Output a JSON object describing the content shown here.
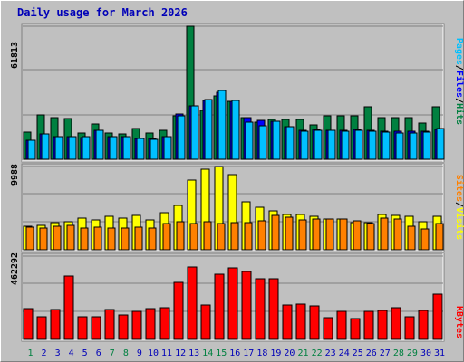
{
  "title": "Daily usage for March 2026",
  "colors": {
    "hits": "#008040",
    "files": "#0000ff",
    "pages": "#00c0ff",
    "visits": "#ffff00",
    "sites": "#ff8000",
    "kbytes": "#ff0000",
    "title": "#0000b8",
    "weekend_day": "#008040",
    "weekday_day": "#0000b8"
  },
  "chart_data": [
    {
      "type": "bar",
      "categories": [
        "1",
        "2",
        "3",
        "4",
        "5",
        "6",
        "7",
        "8",
        "9",
        "10",
        "11",
        "12",
        "13",
        "14",
        "15",
        "16",
        "17",
        "18",
        "19",
        "20",
        "21",
        "22",
        "23",
        "24",
        "25",
        "26",
        "27",
        "28",
        "29",
        "30",
        "31"
      ],
      "weekend_days": [
        "1",
        "7",
        "8",
        "14",
        "15",
        "21",
        "22",
        "28",
        "29"
      ],
      "ymax_label": "61813",
      "ylim": [
        0,
        61813
      ],
      "legend": {
        "pages": "Pages",
        "files": "Files",
        "hits": "Hits",
        "sep": "/"
      },
      "series": [
        {
          "name": "Hits",
          "values": [
            12700,
            20600,
            19400,
            18900,
            12400,
            16400,
            12400,
            11900,
            14500,
            12400,
            13300,
            20300,
            61813,
            22600,
            29300,
            27000,
            19300,
            17200,
            18700,
            18700,
            18700,
            16100,
            20300,
            20300,
            20000,
            24400,
            19300,
            19300,
            19300,
            16900,
            24400
          ]
        },
        {
          "name": "Files",
          "values": [
            8800,
            11700,
            10700,
            10700,
            10100,
            13300,
            10700,
            10700,
            9600,
            9600,
            10700,
            20900,
            24900,
            27500,
            31200,
            27000,
            19300,
            18100,
            17500,
            15200,
            13500,
            13800,
            13500,
            13500,
            13800,
            13500,
            12900,
            12900,
            12900,
            12900,
            14000
          ]
        },
        {
          "name": "Pages",
          "values": [
            8800,
            11700,
            10700,
            10700,
            10400,
            13300,
            10700,
            10700,
            9600,
            9300,
            10700,
            20300,
            24900,
            27800,
            32000,
            27300,
            17200,
            15500,
            17500,
            15200,
            13000,
            13500,
            13500,
            13000,
            13500,
            13000,
            12700,
            12400,
            12400,
            12700,
            14400
          ]
        }
      ]
    },
    {
      "type": "bar",
      "categories": [
        "1",
        "2",
        "3",
        "4",
        "5",
        "6",
        "7",
        "8",
        "9",
        "10",
        "11",
        "12",
        "13",
        "14",
        "15",
        "16",
        "17",
        "18",
        "19",
        "20",
        "21",
        "22",
        "23",
        "24",
        "25",
        "26",
        "27",
        "28",
        "29",
        "30",
        "31"
      ],
      "ymax_label": "9988",
      "ylim": [
        0,
        9988
      ],
      "legend": {
        "sites": "Sites",
        "visits": "Visits",
        "sep": "/"
      },
      "series": [
        {
          "name": "Visits",
          "values": [
            2780,
            2970,
            3280,
            3370,
            3820,
            3590,
            4030,
            3780,
            4100,
            3610,
            4470,
            5280,
            8410,
            9660,
            9990,
            9010,
            5800,
            5070,
            4640,
            4280,
            4260,
            4070,
            3710,
            3710,
            3210,
            3210,
            4210,
            4150,
            4050,
            3350,
            4050
          ]
        },
        {
          "name": "Sites",
          "values": [
            2700,
            2650,
            2780,
            2920,
            2640,
            2660,
            2640,
            2560,
            2700,
            2560,
            3170,
            3350,
            3200,
            3410,
            3200,
            3300,
            3280,
            3440,
            4100,
            3920,
            3580,
            3720,
            3640,
            3720,
            3440,
            3180,
            3750,
            3640,
            2870,
            2450,
            3200
          ]
        }
      ]
    },
    {
      "type": "bar",
      "categories": [
        "1",
        "2",
        "3",
        "4",
        "5",
        "6",
        "7",
        "8",
        "9",
        "10",
        "11",
        "12",
        "13",
        "14",
        "15",
        "16",
        "17",
        "18",
        "19",
        "20",
        "21",
        "22",
        "23",
        "24",
        "25",
        "26",
        "27",
        "28",
        "29",
        "30",
        "31"
      ],
      "ymax_label": "462292",
      "ylim": [
        0,
        462292
      ],
      "legend": {
        "kbytes": "KBytes"
      },
      "series": [
        {
          "name": "KBytes",
          "values": [
            170000,
            125000,
            168000,
            350000,
            127000,
            124000,
            168000,
            138000,
            158000,
            173000,
            174000,
            318000,
            400000,
            193000,
            360000,
            395000,
            375000,
            338000,
            337000,
            193000,
            195000,
            185000,
            120000,
            155000,
            118000,
            158000,
            160000,
            178000,
            128000,
            160000,
            250000
          ]
        }
      ]
    }
  ]
}
